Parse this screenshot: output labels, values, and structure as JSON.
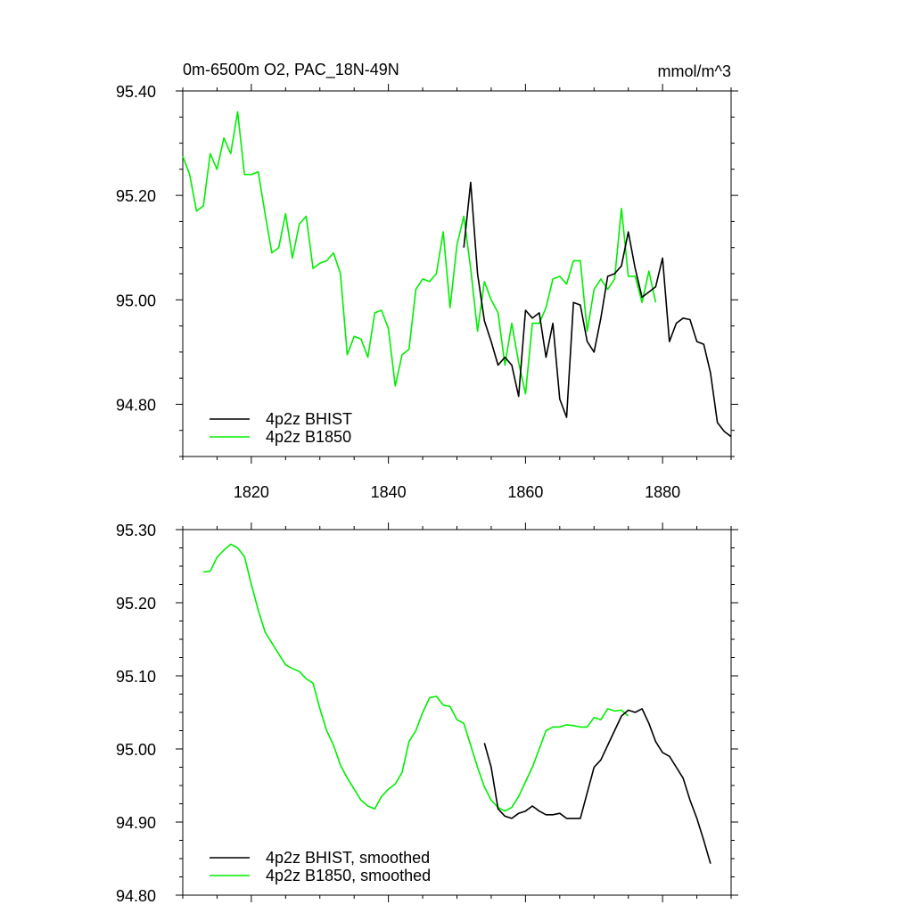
{
  "colors": {
    "bhist": "#000000",
    "b1850": "#00ee00"
  },
  "chart_data": [
    {
      "type": "line",
      "title_left": "0m-6500m O2, PAC_18N-49N",
      "title_right": "mmol/m^3",
      "xlim": [
        1810,
        1890
      ],
      "ylim": [
        94.7,
        95.4
      ],
      "yticks": [
        94.8,
        95.0,
        95.2,
        95.4
      ],
      "ytick_labels": [
        "94.80",
        "95.00",
        "95.20",
        "95.40"
      ],
      "xticks": [
        1820,
        1840,
        1860,
        1880
      ],
      "xtick_labels": [
        "1820",
        "1840",
        "1860",
        "1880"
      ],
      "show_xtick_labels": true,
      "legend": [
        "4p2z BHIST",
        "4p2z B1850"
      ],
      "series": [
        {
          "name": "4p2z BHIST",
          "color_key": "bhist",
          "x_start": 1851,
          "values": [
            95.1,
            95.225,
            95.05,
            94.96,
            94.92,
            94.875,
            94.89,
            94.875,
            94.815,
            94.98,
            94.965,
            94.975,
            94.89,
            94.955,
            94.81,
            94.775,
            94.995,
            94.99,
            94.92,
            94.9,
            94.965,
            95.045,
            95.05,
            95.065,
            95.13,
            95.06,
            95.005,
            95.015,
            95.025,
            95.08,
            94.92,
            94.955,
            94.965,
            94.962,
            94.92,
            94.915,
            94.86,
            94.765,
            94.748,
            94.738
          ]
        },
        {
          "name": "4p2z B1850",
          "color_key": "b1850",
          "x_start": 1810,
          "values": [
            95.275,
            95.24,
            95.17,
            95.18,
            95.28,
            95.25,
            95.31,
            95.28,
            95.36,
            95.24,
            95.24,
            95.245,
            95.165,
            95.09,
            95.1,
            95.165,
            95.08,
            95.145,
            95.16,
            95.06,
            95.07,
            95.075,
            95.09,
            95.05,
            94.895,
            94.93,
            94.925,
            94.89,
            94.975,
            94.98,
            94.945,
            94.835,
            94.895,
            94.905,
            95.02,
            95.04,
            95.035,
            95.05,
            95.13,
            94.985,
            95.105,
            95.16,
            95.06,
            94.94,
            95.035,
            95.0,
            94.975,
            94.875,
            94.955,
            94.88,
            94.82,
            94.955,
            94.955,
            94.985,
            95.04,
            95.045,
            95.03,
            95.075,
            95.075,
            94.94,
            95.02,
            95.04,
            95.02,
            95.04,
            95.175,
            95.045,
            95.045,
            94.995,
            95.055,
            94.995
          ]
        }
      ]
    },
    {
      "type": "line",
      "xlim": [
        1810,
        1890
      ],
      "ylim": [
        94.8,
        95.3
      ],
      "yticks": [
        94.8,
        94.9,
        95.0,
        95.1,
        95.2,
        95.3
      ],
      "ytick_labels": [
        "94.80",
        "94.90",
        "95.00",
        "95.10",
        "95.20",
        "95.30"
      ],
      "xticks": [
        1820,
        1840,
        1860,
        1880
      ],
      "xtick_labels": [
        "1820",
        "1840",
        "1860",
        "1880"
      ],
      "show_xtick_labels": false,
      "legend": [
        "4p2z BHIST, smoothed",
        "4p2z B1850, smoothed"
      ],
      "series": [
        {
          "name": "4p2z BHIST, smoothed",
          "color_key": "bhist",
          "x_start": 1854,
          "values": [
            95.008,
            94.975,
            94.918,
            94.908,
            94.905,
            94.912,
            94.915,
            94.922,
            94.915,
            94.91,
            94.91,
            94.912,
            94.905,
            94.905,
            94.905,
            94.94,
            94.975,
            94.985,
            95.005,
            95.025,
            95.045,
            95.053,
            95.05,
            95.055,
            95.035,
            95.01,
            94.995,
            94.99,
            94.975,
            94.96,
            94.93,
            94.905,
            94.875,
            94.843
          ]
        },
        {
          "name": "4p2z B1850, smoothed",
          "color_key": "b1850",
          "x_start": 1813,
          "values": [
            95.242,
            95.243,
            95.262,
            95.272,
            95.28,
            95.275,
            95.263,
            95.225,
            95.19,
            95.16,
            95.145,
            95.13,
            95.115,
            95.11,
            95.106,
            95.096,
            95.09,
            95.055,
            95.025,
            95.005,
            94.978,
            94.96,
            94.945,
            94.93,
            94.922,
            94.918,
            94.935,
            94.945,
            94.952,
            94.968,
            95.01,
            95.025,
            95.05,
            95.07,
            95.072,
            95.06,
            95.058,
            95.04,
            95.035,
            95.005,
            94.975,
            94.948,
            94.93,
            94.92,
            94.915,
            94.92,
            94.935,
            94.955,
            94.975,
            95.0,
            95.025,
            95.03,
            95.03,
            95.033,
            95.032,
            95.03,
            95.03,
            95.043,
            95.04,
            95.055,
            95.052,
            95.053,
            95.045
          ]
        }
      ]
    }
  ]
}
